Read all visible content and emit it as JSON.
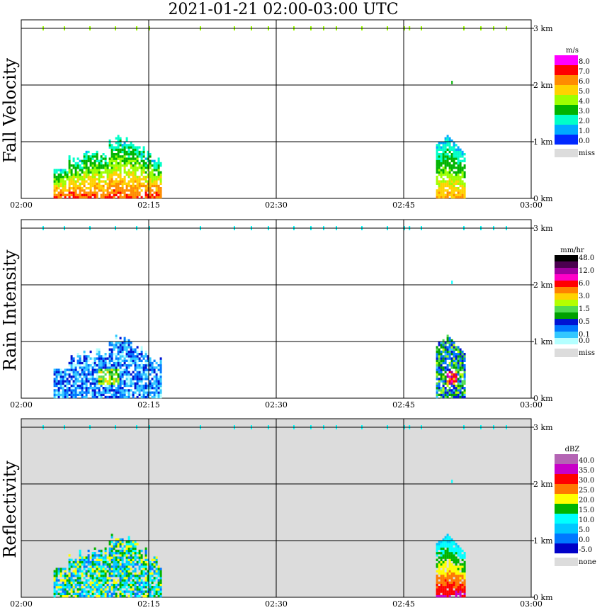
{
  "title": "2021-01-21   02:00-03:00 UTC",
  "x_tick_labels": [
    "02:00",
    "02:15",
    "02:30",
    "02:45",
    "03:00"
  ],
  "y_tick_labels": [
    "0 km",
    "1 km",
    "2 km",
    "3 km"
  ],
  "panels": [
    {
      "ylabel": "Fall Velocity",
      "background": "#ffffff",
      "legend": {
        "unit": "m/s",
        "entries": [
          {
            "label": "8.0",
            "color": "#ff00ff"
          },
          {
            "label": "7.0",
            "color": "#ff0000"
          },
          {
            "label": "6.0",
            "color": "#ff8c00"
          },
          {
            "label": "5.0",
            "color": "#ffd200"
          },
          {
            "label": "4.0",
            "color": "#9dff00"
          },
          {
            "label": "3.0",
            "color": "#00b400"
          },
          {
            "label": "2.0",
            "color": "#00ffc8"
          },
          {
            "label": "1.0",
            "color": "#00aaff"
          },
          {
            "label": "0.0",
            "color": "#0028ff"
          }
        ],
        "miss_label": "miss",
        "miss_color": "#dcdcdc"
      }
    },
    {
      "ylabel": "Rain Intensity",
      "background": "#ffffff",
      "legend": {
        "unit": "mm/hr",
        "entries": [
          {
            "label": "48.0",
            "color": "#000000"
          },
          {
            "label": "",
            "color": "#4b0050"
          },
          {
            "label": "12.0",
            "color": "#a000a0"
          },
          {
            "label": "",
            "color": "#ff00c8"
          },
          {
            "label": "6.0",
            "color": "#ff0000"
          },
          {
            "label": "",
            "color": "#ff8200"
          },
          {
            "label": "3.0",
            "color": "#ffd200"
          },
          {
            "label": "",
            "color": "#b4ff00"
          },
          {
            "label": "1.5",
            "color": "#50dc50"
          },
          {
            "label": "",
            "color": "#00a000"
          },
          {
            "label": "0.5",
            "color": "#0014d2"
          },
          {
            "label": "",
            "color": "#0078ff"
          },
          {
            "label": "0.1",
            "color": "#32c8ff"
          },
          {
            "label": "0.0",
            "color": "#b4ffff"
          }
        ],
        "miss_label": "miss",
        "miss_color": "#dcdcdc"
      }
    },
    {
      "ylabel": "Reflectivity",
      "background": "#dcdcdc",
      "legend": {
        "unit": "dBZ",
        "entries": [
          {
            "label": "40.0",
            "color": "#b464b4"
          },
          {
            "label": "35.0",
            "color": "#c800c8"
          },
          {
            "label": "30.0",
            "color": "#ff0000"
          },
          {
            "label": "25.0",
            "color": "#ff7800"
          },
          {
            "label": "20.0",
            "color": "#ffff00"
          },
          {
            "label": "15.0",
            "color": "#00b400"
          },
          {
            "label": "10.0",
            "color": "#00ffff"
          },
          {
            "label": "5.0",
            "color": "#00c8ff"
          },
          {
            "label": "0.0",
            "color": "#0078ff"
          },
          {
            "label": "-5.0",
            "color": "#0000c8"
          }
        ],
        "miss_label": "none",
        "miss_color": "#dcdcdc"
      }
    }
  ],
  "chart_data": {
    "type": "heatmap",
    "x_range": [
      "02:00",
      "03:00"
    ],
    "y_range_km": [
      0,
      3.2
    ],
    "precip_events": [
      {
        "start": "02:04",
        "end": "02:17",
        "top_km": 1.0,
        "panel_peaks": {
          "fall_velocity_ms": 8.0,
          "rain_intensity_mmhr": 6.0,
          "reflectivity_dbz": 20.0
        }
      },
      {
        "start": "02:48",
        "end": "02:52",
        "top_km": 1.1,
        "panel_peaks": {
          "fall_velocity_ms": 6.0,
          "rain_intensity_mmhr": 12.0,
          "reflectivity_dbz": 30.0
        }
      }
    ],
    "clutter_layer_km": 3.0
  }
}
